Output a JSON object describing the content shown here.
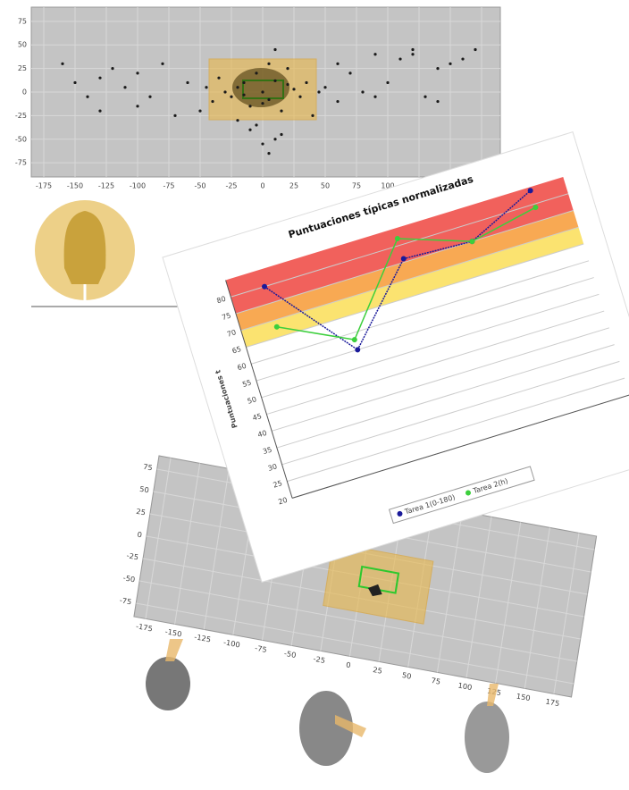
{
  "chart_data": [
    {
      "type": "scatter",
      "color": "#1a1a1a",
      "grid": true,
      "x": [
        -160,
        -150,
        -140,
        -130,
        -120,
        -110,
        -100,
        -90,
        -80,
        -70,
        -60,
        -50,
        -45,
        -40,
        -35,
        -30,
        -25,
        -20,
        -15,
        -10,
        -5,
        0,
        5,
        10,
        15,
        20,
        25,
        30,
        35,
        40,
        45,
        50,
        60,
        70,
        80,
        90,
        100,
        110,
        120,
        130,
        140,
        150,
        160,
        170,
        -10,
        0,
        5,
        10,
        -5,
        15,
        -20,
        20,
        0,
        5,
        -15,
        10,
        -130,
        -100,
        60,
        90,
        120,
        140
      ],
      "values": [
        30,
        10,
        -5,
        15,
        25,
        5,
        20,
        -5,
        30,
        -25,
        10,
        -20,
        5,
        -10,
        15,
        0,
        -5,
        5,
        10,
        -15,
        20,
        0,
        -8,
        12,
        -20,
        25,
        3,
        -5,
        10,
        -25,
        0,
        5,
        -10,
        20,
        0,
        -5,
        10,
        35,
        40,
        -5,
        25,
        30,
        35,
        45,
        -40,
        -55,
        -65,
        -50,
        -35,
        -45,
        -30,
        8,
        -12,
        30,
        -3,
        45,
        -20,
        -15,
        30,
        40,
        45,
        -10
      ],
      "xlim": [
        -185,
        190
      ],
      "ylim": [
        -90,
        90
      ],
      "xticks": [
        -175,
        -150,
        -125,
        -100,
        -75,
        -50,
        -25,
        0,
        25,
        50,
        75,
        100,
        125,
        150,
        175
      ],
      "yticks": [
        75,
        50,
        25,
        0,
        -25,
        -50,
        -75
      ]
    },
    {
      "type": "line",
      "title": "Puntuaciones típicas normalizadas",
      "y_label": "Puntuaciones t",
      "categories": [
        null,
        null,
        null,
        null,
        null
      ],
      "series": [
        {
          "name": "Tarea 1(0-180)",
          "color": "#1a1a9a",
          "values": [
            80,
            55,
            76,
            75,
            84
          ]
        },
        {
          "name": "Tarea 2(h)",
          "color": "#3ccf3c",
          "values": [
            68,
            58,
            82,
            75,
            79
          ]
        }
      ],
      "bands": [
        {
          "from": 75,
          "to": 85,
          "color": "#f0504a"
        },
        {
          "from": 70,
          "to": 75,
          "color": "#f7a040"
        },
        {
          "from": 65,
          "to": 70,
          "color": "#fbe060"
        }
      ],
      "ylim": [
        20,
        85
      ],
      "yticks": [
        20,
        25,
        30,
        35,
        40,
        45,
        50,
        55,
        60,
        65,
        70,
        75,
        80
      ],
      "grid": true
    },
    {
      "type": "scatter",
      "grid": true,
      "xlim": [
        -185,
        190
      ],
      "ylim": [
        -90,
        90
      ],
      "xticks": [
        -175,
        -150,
        -125,
        -100,
        -75,
        -50,
        -25,
        0,
        25,
        50,
        75,
        100,
        125,
        150,
        175
      ],
      "yticks": [
        75,
        50,
        25,
        0,
        -25,
        -50,
        -75
      ]
    }
  ]
}
